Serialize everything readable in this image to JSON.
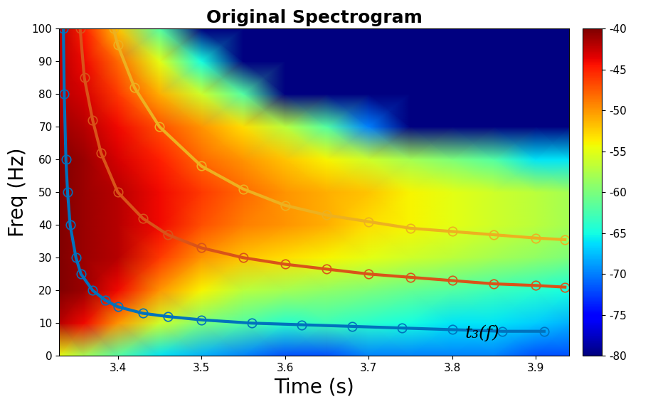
{
  "chart_data": {
    "type": "heatmap",
    "title": "Original Spectrogram",
    "x_label": "Time (s)",
    "y_label": "Freq (Hz)",
    "xlim": [
      3.33,
      3.94
    ],
    "xticks": [
      3.4,
      3.5,
      3.6,
      3.7,
      3.8,
      3.9
    ],
    "ylim": [
      0,
      100
    ],
    "yticks": [
      0,
      10,
      20,
      30,
      40,
      50,
      60,
      70,
      80,
      90,
      100
    ],
    "cells": {
      "x": [
        3.33,
        3.36,
        3.4,
        3.45,
        3.5,
        3.55,
        3.6,
        3.65,
        3.7,
        3.75,
        3.8,
        3.85,
        3.9,
        3.94
      ],
      "y": [
        0,
        10,
        20,
        30,
        40,
        50,
        60,
        70,
        80,
        90,
        100
      ],
      "values": [
        [
          -55,
          -58,
          -62,
          -66,
          -68,
          -70,
          -72,
          -72,
          -70,
          -70,
          -70,
          -70,
          -72,
          -72
        ],
        [
          -42,
          -44,
          -50,
          -56,
          -60,
          -62,
          -64,
          -63,
          -64,
          -65,
          -66,
          -66,
          -67,
          -68
        ],
        [
          -40,
          -41,
          -44,
          -50,
          -54,
          -57,
          -58,
          -59,
          -60,
          -61,
          -62,
          -63,
          -64,
          -65
        ],
        [
          -40,
          -41,
          -42,
          -46,
          -50,
          -52,
          -53,
          -54,
          -55,
          -56,
          -57,
          -58,
          -59,
          -60
        ],
        [
          -40,
          -41,
          -42,
          -44,
          -47,
          -49,
          -50,
          -51,
          -53,
          -54,
          -55,
          -56,
          -57,
          -58
        ],
        [
          -40,
          -41,
          -42,
          -44,
          -46,
          -48,
          -50,
          -51,
          -52,
          -54,
          -55,
          -56,
          -57,
          -58
        ],
        [
          -40,
          -41,
          -43,
          -45,
          -48,
          -50,
          -52,
          -54,
          -56,
          -58,
          -60,
          -62,
          -66,
          -66
        ],
        [
          -41,
          -42,
          -44,
          -47,
          -50,
          -53,
          -57,
          -62,
          -70,
          -80,
          -80,
          -80,
          -80,
          -80
        ],
        [
          -42,
          -43,
          -46,
          -51,
          -56,
          -62,
          -80,
          -80,
          -80,
          -80,
          -80,
          -80,
          -80,
          -80
        ],
        [
          -42,
          -44,
          -48,
          -55,
          -65,
          -80,
          -80,
          -80,
          -80,
          -80,
          -80,
          -80,
          -80,
          -80
        ],
        [
          -42,
          -45,
          -52,
          -62,
          -80,
          -80,
          -80,
          -80,
          -80,
          -80,
          -80,
          -80,
          -80,
          -80
        ]
      ]
    },
    "colorbar": {
      "range": [
        -80,
        -40
      ],
      "ticks": [
        -80,
        -75,
        -70,
        -65,
        -60,
        -55,
        -50,
        -45,
        -40
      ]
    },
    "series": [
      {
        "color": "#0072bd",
        "marker": "o",
        "line_style": "solid",
        "x": [
          3.335,
          3.336,
          3.338,
          3.34,
          3.343,
          3.35,
          3.356,
          3.37,
          3.385,
          3.4,
          3.43,
          3.46,
          3.5,
          3.56,
          3.62,
          3.68,
          3.74,
          3.8,
          3.86,
          3.91
        ],
        "values": [
          100,
          80,
          60,
          50,
          40,
          30,
          25,
          20,
          17,
          15,
          13,
          12,
          11,
          10,
          9.5,
          9,
          8.5,
          8,
          7.5,
          7.5
        ]
      },
      {
        "color": "#d95319",
        "marker": "o",
        "line_style": "solid",
        "x": [
          3.355,
          3.36,
          3.37,
          3.38,
          3.4,
          3.43,
          3.46,
          3.5,
          3.55,
          3.6,
          3.65,
          3.7,
          3.75,
          3.8,
          3.85,
          3.9,
          3.935
        ],
        "values": [
          100,
          85,
          72,
          62,
          50,
          42,
          37,
          33,
          30,
          28,
          26.5,
          25,
          24,
          23,
          22,
          21.5,
          21
        ]
      },
      {
        "color": "#edb120",
        "marker": "o",
        "line_style": "solid",
        "x": [
          3.395,
          3.4,
          3.42,
          3.45,
          3.5,
          3.55,
          3.6,
          3.65,
          3.7,
          3.75,
          3.8,
          3.85,
          3.9,
          3.935
        ],
        "values": [
          100,
          95,
          82,
          70,
          58,
          51,
          46,
          43,
          41,
          39,
          38,
          37,
          36,
          35.5
        ]
      }
    ],
    "annotations": [
      {
        "text": "t₃(f)"
      }
    ]
  }
}
